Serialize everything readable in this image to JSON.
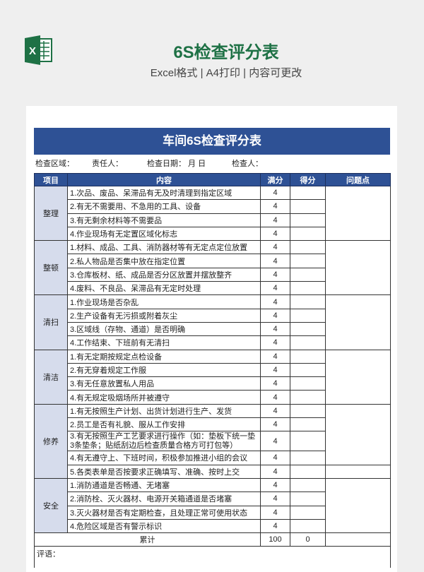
{
  "header": {
    "title": "6S检查评分表",
    "subtitle": "Excel格式 | A4打印 | 内容可更改",
    "logo_icon": "excel-icon",
    "logo_color": "#1e7145"
  },
  "sheet": {
    "title": "车间6S检查评分表",
    "info": {
      "area": "检查区域：",
      "owner": "责任人：",
      "date": "检查日期：  月  日",
      "inspector": "检查人："
    },
    "columns": [
      "项目",
      "内容",
      "满分",
      "得分",
      "问题点"
    ],
    "groups": [
      {
        "name": "整理",
        "items": [
          {
            "text": "1.次品、废品、呆滞品有无及时清理到指定区域",
            "max": "4"
          },
          {
            "text": "2.有无不需要用、不急用的工具、设备",
            "max": "4"
          },
          {
            "text": "3.有无剩余材料等不需要品",
            "max": "4"
          },
          {
            "text": "4.作业现场有无定置区域化标志",
            "max": "4"
          }
        ]
      },
      {
        "name": "整顿",
        "items": [
          {
            "text": "1.材料、成品、工具、消防器材等有无定点定位放置",
            "max": "4"
          },
          {
            "text": "2.私人物品是否集中放在指定位置",
            "max": "4"
          },
          {
            "text": "3.仓库板材、纸、成品是否分区放置并摆放整齐",
            "max": "4"
          },
          {
            "text": "4.废料、不良品、呆滞品有无定时处理",
            "max": "4"
          }
        ]
      },
      {
        "name": "清扫",
        "items": [
          {
            "text": "1.作业现场是否杂乱",
            "max": "4"
          },
          {
            "text": "2.生产设备有无污损或附着灰尘",
            "max": "4"
          },
          {
            "text": "3.区域线（存物、通道）是否明确",
            "max": "4"
          },
          {
            "text": "4.工作结束、下班前有无清扫",
            "max": "4"
          }
        ]
      },
      {
        "name": "清洁",
        "items": [
          {
            "text": "1.有无定期按规定点检设备",
            "max": "4"
          },
          {
            "text": "2.有无穿着规定工作服",
            "max": "4"
          },
          {
            "text": "3.有无任意放置私人用品",
            "max": "4"
          },
          {
            "text": "4.有无规定吸烟场所并被遵守",
            "max": "4"
          }
        ]
      },
      {
        "name": "修养",
        "items": [
          {
            "text": "1.有无按照生产计划、出货计划进行生产、发货",
            "max": "4"
          },
          {
            "text": "2.员工是否有礼貌、服从工作安排",
            "max": "4"
          },
          {
            "text": "3.有无按照生产工艺要求进行操作（如：垫板下统一垫3条垫条；贴纸刮边后检查质量合格方可打包等）",
            "max": "4"
          },
          {
            "text": "4.有无遵守上、下班时间，积极参加推进小组的会议",
            "max": "4"
          },
          {
            "text": "5.各类表单是否按要求正确填写、准确、按时上交",
            "max": "4"
          }
        ]
      },
      {
        "name": "安全",
        "items": [
          {
            "text": "1.消防通道是否畅通、无堵塞",
            "max": "4"
          },
          {
            "text": "2.消防栓、灭火器材、电源开关箱通道是否堵塞",
            "max": "4"
          },
          {
            "text": "3.灭火器材是否有定期检查，且处理正常可使用状态",
            "max": "4"
          },
          {
            "text": "4.危险区域是否有警示标识",
            "max": "4"
          }
        ]
      }
    ],
    "total": {
      "label": "累计",
      "max": "100",
      "score": "0"
    },
    "comment_label": "评语："
  }
}
